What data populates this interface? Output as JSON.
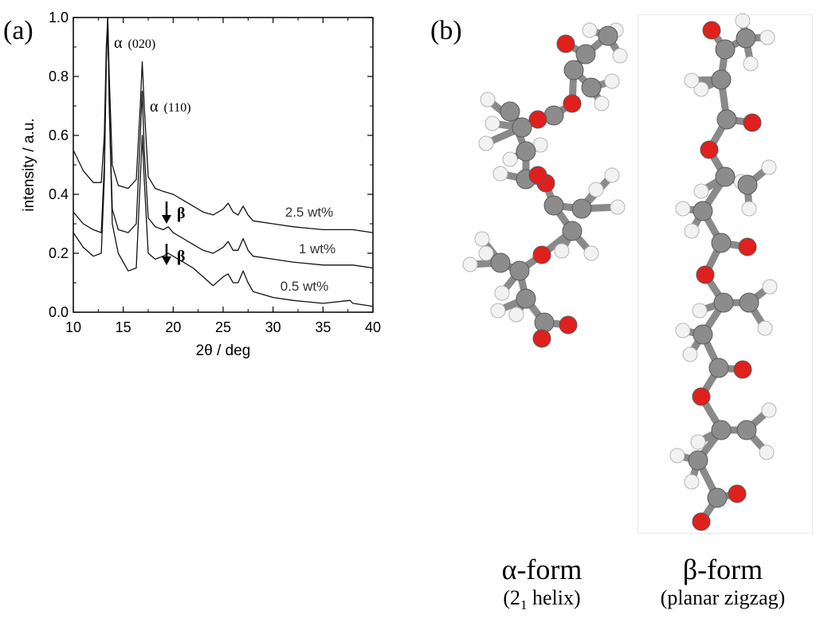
{
  "panel_a": {
    "label": "(a)",
    "annotations": {
      "alpha_020": {
        "symbol": "α",
        "hkl": "(020)"
      },
      "alpha_110": {
        "symbol": "α",
        "hkl": "(110)"
      },
      "beta_upper": "β",
      "beta_lower": "β"
    }
  },
  "panel_b": {
    "label": "(b)",
    "alpha": {
      "title": "α-form",
      "sub_prefix": "(2",
      "sub_index": "1",
      "sub_suffix": " helix)"
    },
    "beta": {
      "title": "β-form",
      "sub": "(planar zigzag)"
    },
    "colors": {
      "carbon": "#8c8c8c",
      "oxygen": "#e0201c",
      "hydrogen": "#f2f2f2",
      "bond": "#8a8a8a"
    }
  },
  "chart_data": {
    "type": "line",
    "xlabel": "2θ / deg",
    "ylabel": "intensity / a.u.",
    "xlim": [
      10,
      40
    ],
    "ylim": [
      0.0,
      1.0
    ],
    "x_ticks": [
      "10",
      "15",
      "20",
      "25",
      "30",
      "35",
      "40"
    ],
    "y_ticks": [
      "0.0",
      "0.2",
      "0.4",
      "0.6",
      "0.8",
      "1.0"
    ],
    "grid": false,
    "series": [
      {
        "name": "2.5 wt%",
        "x": [
          10,
          11,
          12,
          12.8,
          13.1,
          13.3,
          13.45,
          13.6,
          13.9,
          14.5,
          15.5,
          16.3,
          16.7,
          16.9,
          17.1,
          17.5,
          18.2,
          19,
          20,
          21,
          22,
          23,
          24,
          25,
          25.5,
          26,
          26.5,
          27,
          27.5,
          28,
          30,
          32,
          35,
          38,
          40
        ],
        "y": [
          0.55,
          0.48,
          0.44,
          0.44,
          0.6,
          0.9,
          1.0,
          0.8,
          0.5,
          0.43,
          0.42,
          0.45,
          0.7,
          0.85,
          0.7,
          0.46,
          0.42,
          0.41,
          0.4,
          0.38,
          0.36,
          0.34,
          0.33,
          0.35,
          0.37,
          0.34,
          0.33,
          0.36,
          0.33,
          0.31,
          0.3,
          0.29,
          0.28,
          0.28,
          0.27
        ]
      },
      {
        "name": "1 wt%",
        "x": [
          10,
          11,
          12,
          12.8,
          13.1,
          13.3,
          13.45,
          13.6,
          13.9,
          14.5,
          15.5,
          16.3,
          16.7,
          16.9,
          17.1,
          17.5,
          18.2,
          19,
          19.5,
          20,
          21,
          22,
          23,
          24,
          25,
          25.5,
          26,
          26.5,
          27,
          27.5,
          28,
          30,
          32,
          35,
          38,
          40
        ],
        "y": [
          0.34,
          0.3,
          0.28,
          0.27,
          0.5,
          0.85,
          1.0,
          0.7,
          0.35,
          0.28,
          0.27,
          0.3,
          0.6,
          0.75,
          0.55,
          0.32,
          0.29,
          0.28,
          0.29,
          0.27,
          0.25,
          0.23,
          0.21,
          0.2,
          0.22,
          0.24,
          0.21,
          0.21,
          0.25,
          0.21,
          0.19,
          0.18,
          0.17,
          0.16,
          0.16,
          0.15
        ]
      },
      {
        "name": "0.5 wt%",
        "x": [
          10,
          11,
          12,
          12.8,
          13.1,
          13.3,
          13.45,
          13.6,
          13.9,
          14.5,
          15.5,
          16.3,
          16.7,
          16.9,
          17.1,
          17.5,
          18.2,
          19,
          19.5,
          20,
          21,
          22,
          23,
          24,
          25,
          25.5,
          26,
          26.5,
          27,
          27.5,
          28,
          30,
          32,
          35,
          37.7,
          38,
          40
        ],
        "y": [
          0.27,
          0.22,
          0.19,
          0.2,
          0.45,
          0.85,
          1.0,
          0.7,
          0.3,
          0.2,
          0.14,
          0.15,
          0.45,
          0.6,
          0.45,
          0.2,
          0.18,
          0.19,
          0.2,
          0.19,
          0.17,
          0.15,
          0.12,
          0.09,
          0.12,
          0.13,
          0.1,
          0.1,
          0.14,
          0.1,
          0.07,
          0.05,
          0.04,
          0.03,
          0.04,
          0.03,
          0.02
        ]
      }
    ]
  }
}
